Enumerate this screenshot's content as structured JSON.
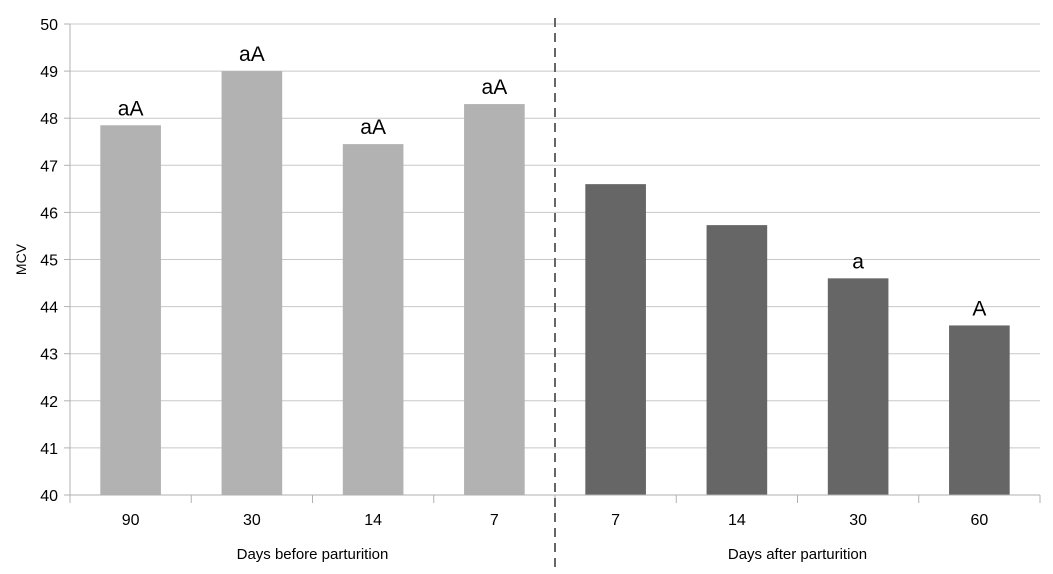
{
  "chart_data": {
    "type": "bar",
    "ylabel": "MCV",
    "ylim": [
      40,
      50
    ],
    "ytick_step": 1,
    "grid": true,
    "groups": [
      {
        "label": "Days before parturition",
        "color": "#b2b2b2",
        "categories": [
          "90",
          "30",
          "14",
          "7"
        ],
        "values": [
          47.85,
          49.0,
          47.45,
          48.3
        ],
        "annotations": [
          "aA",
          "aA",
          "aA",
          "aA"
        ]
      },
      {
        "label": "Days after parturition",
        "color": "#666666",
        "categories": [
          "7",
          "14",
          "30",
          "60"
        ],
        "values": [
          46.6,
          45.73,
          44.6,
          43.6
        ],
        "annotations": [
          "",
          "",
          "a",
          "A"
        ]
      }
    ],
    "separator": "dashed vertical line between groups"
  }
}
